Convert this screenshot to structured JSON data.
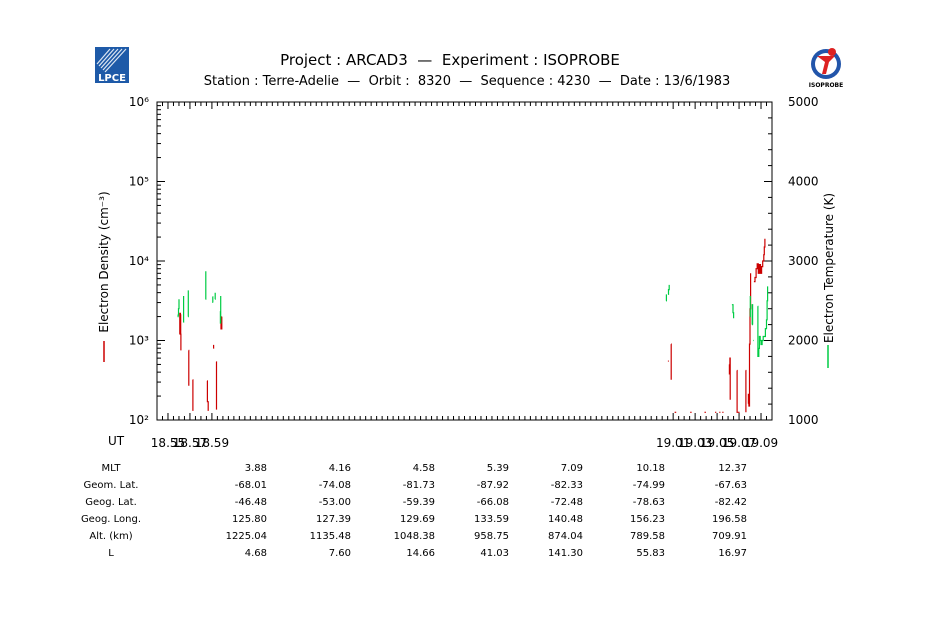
{
  "header": {
    "title": "Project : ARCAD3  —  Experiment : ISOPROBE",
    "subtitle": "Station : Terre-Adelie  —  Orbit :  8320  —  Sequence : 4230  —  Date : 13/6/1983",
    "left_logo_text": "LPCE",
    "right_logo_text": "ISOPROBE"
  },
  "chart_data": {
    "type": "line",
    "title": "Project : ARCAD3  —  Experiment : ISOPROBE",
    "xlabel": "UT",
    "ylabel": "Electron Density (cm⁻³)",
    "y2label": "Electron Temperature (K)",
    "x_ticks": [
      "18.55",
      "18.57",
      "18.59",
      "19.01",
      "19.03",
      "19.05",
      "19.07",
      "19.09"
    ],
    "x_tick_values": [
      18.55,
      18.57,
      18.59,
      19.01,
      19.03,
      19.05,
      19.07,
      19.09
    ],
    "xlim": [
      18.54,
      19.1
    ],
    "y_scale": "log",
    "ylim": [
      100,
      1000000
    ],
    "y_ticks": [
      "10²",
      "10³",
      "10⁴",
      "10⁵",
      "10⁶"
    ],
    "y_tick_exponents": [
      2,
      3,
      4,
      5,
      6
    ],
    "y2lim": [
      1000,
      5000
    ],
    "y2_ticks": [
      "1000",
      "2000",
      "3000",
      "4000",
      "5000"
    ],
    "y2_tick_values": [
      1000,
      2000,
      3000,
      4000,
      5000
    ],
    "grid": false,
    "series": [
      {
        "name": "Electron Density (cm⁻³)",
        "axis": "left",
        "color": "#cc0000",
        "segments": [
          [
            [
              18.5606,
              1200
            ],
            [
              18.5608,
              2200
            ],
            [
              18.5613,
              2100
            ],
            [
              18.5616,
              1200
            ],
            [
              18.5618,
              750
            ]
          ],
          [
            [
              18.5688,
              750
            ],
            [
              18.569,
              270
            ]
          ],
          [
            [
              18.5725,
              320
            ],
            [
              18.5727,
              130
            ]
          ],
          [
            [
              18.5857,
              310
            ],
            [
              18.5859,
              170
            ],
            [
              18.5864,
              170
            ],
            [
              18.5866,
              130
            ]
          ],
          [
            [
              18.5913,
              800
            ],
            [
              18.5915,
              880
            ]
          ],
          [
            [
              18.594,
              540
            ],
            [
              18.5942,
              135
            ]
          ],
          [
            [
              18.598,
              2000
            ],
            [
              18.5983,
              1400
            ],
            [
              18.5988,
              1400
            ],
            [
              18.599,
              2000
            ]
          ],
          [
            [
              19.0052,
              550
            ],
            [
              19.006,
              550
            ]
          ],
          [
            [
              19.008,
              900
            ],
            [
              19.0082,
              320
            ]
          ],
          [
            [
              19.0113,
              125
            ],
            [
              19.0128,
              125
            ]
          ],
          [
            [
              19.0255,
              125
            ],
            [
              19.0268,
              125
            ]
          ],
          [
            [
              19.0385,
              125
            ],
            [
              19.0398,
              125
            ]
          ],
          [
            [
              19.0482,
              125
            ],
            [
              19.0493,
              125
            ]
          ],
          [
            [
              19.052,
              125
            ],
            [
              19.053,
              125
            ]
          ],
          [
            [
              19.0547,
              125
            ],
            [
              19.0558,
              125
            ]
          ],
          [
            [
              19.061,
              500
            ],
            [
              19.0612,
              380
            ],
            [
              19.0617,
              600
            ],
            [
              19.0619,
              180
            ]
          ],
          [
            [
              19.068,
              420
            ],
            [
              19.0682,
              125
            ],
            [
              19.0705,
              125
            ]
          ],
          [
            [
              19.076,
              420
            ],
            [
              19.0762,
              125
            ]
          ],
          [
            [
              19.0783,
              160
            ],
            [
              19.0785,
              210
            ],
            [
              19.079,
              150
            ],
            [
              19.0795,
              900
            ],
            [
              19.08,
              2500
            ],
            [
              19.0805,
              7000
            ]
          ],
          [
            [
              19.0835,
              5500
            ],
            [
              19.0845,
              6200
            ],
            [
              19.0855,
              8000
            ],
            [
              19.0865,
              9200
            ],
            [
              19.0875,
              7000
            ],
            [
              19.0885,
              9000
            ],
            [
              19.0895,
              7000
            ],
            [
              19.0905,
              8500
            ],
            [
              19.0915,
              10000
            ],
            [
              19.0925,
              12000
            ],
            [
              19.093,
              15000
            ],
            [
              19.0935,
              19000
            ]
          ]
        ]
      },
      {
        "name": "Electron Temperature (K)",
        "axis": "right",
        "color": "#00cc44",
        "segments": [
          [
            [
              18.5588,
              2300
            ],
            [
              18.5592,
              2320
            ],
            [
              18.5596,
              2400
            ],
            [
              18.56,
              2520
            ]
          ],
          [
            [
              18.564,
              2230
            ],
            [
              18.5642,
              2560
            ]
          ],
          [
            [
              18.5683,
              2300
            ],
            [
              18.5685,
              2630
            ]
          ],
          [
            [
              18.5842,
              2520
            ],
            [
              18.5844,
              2870
            ]
          ],
          [
            [
              18.5905,
              2550
            ],
            [
              18.5908,
              2480
            ],
            [
              18.5912,
              2480
            ]
          ],
          [
            [
              18.5928,
              2520
            ],
            [
              18.593,
              2600
            ]
          ],
          [
            [
              18.5975,
              2370
            ],
            [
              18.5977,
              2220
            ],
            [
              18.598,
              2560
            ]
          ],
          [
            [
              19.0035,
              2500
            ],
            [
              19.0038,
              2580
            ]
          ],
          [
            [
              19.0055,
              2580
            ],
            [
              19.0058,
              2640
            ],
            [
              19.0062,
              2640
            ],
            [
              19.0064,
              2700
            ]
          ],
          [
            [
              19.0635,
              2450
            ],
            [
              19.064,
              2450
            ],
            [
              19.0645,
              2350
            ],
            [
              19.065,
              2280
            ]
          ],
          [
            [
              19.08,
              2300
            ],
            [
              19.0802,
              2560
            ]
          ],
          [
            [
              19.0818,
              2200
            ],
            [
              19.082,
              2450
            ],
            [
              19.0823,
              2200
            ],
            [
              19.0826,
              2200
            ]
          ],
          [
            [
              19.083,
              2000
            ],
            [
              19.0835,
              2000
            ]
          ],
          [
            [
              19.087,
              2430
            ],
            [
              19.0872,
              1800
            ],
            [
              19.0877,
              1800
            ],
            [
              19.088,
              1900
            ],
            [
              19.0885,
              2050
            ],
            [
              19.0893,
              2000
            ],
            [
              19.09,
              1950
            ],
            [
              19.0905,
              1950
            ],
            [
              19.091,
              2000
            ],
            [
              19.092,
              2050
            ],
            [
              19.093,
              2050
            ],
            [
              19.094,
              2150
            ],
            [
              19.095,
              2260
            ],
            [
              19.0955,
              2500
            ],
            [
              19.096,
              2680
            ]
          ]
        ]
      }
    ]
  },
  "ephemeris": {
    "rows": [
      {
        "label": "MLT",
        "values": [
          "3.88",
          "4.16",
          "4.58",
          "5.39",
          "7.09",
          "10.18",
          "12.37"
        ]
      },
      {
        "label": "Geom. Lat.",
        "values": [
          "-68.01",
          "-74.08",
          "-81.73",
          "-87.92",
          "-82.33",
          "-74.99",
          "-67.63"
        ]
      },
      {
        "label": "Geog. Lat.",
        "values": [
          "-46.48",
          "-53.00",
          "-59.39",
          "-66.08",
          "-72.48",
          "-78.63",
          "-82.42"
        ]
      },
      {
        "label": "Geog. Long.",
        "values": [
          "125.80",
          "127.39",
          "129.69",
          "133.59",
          "140.48",
          "156.23",
          "196.58"
        ]
      },
      {
        "label": "Alt. (km)",
        "values": [
          "1225.04",
          "1135.48",
          "1048.38",
          "958.75",
          "874.04",
          "789.58",
          "709.91"
        ]
      },
      {
        "label": "L",
        "values": [
          "4.68",
          "7.60",
          "14.66",
          "41.03",
          "141.30",
          "55.83",
          "16.97"
        ]
      }
    ]
  }
}
